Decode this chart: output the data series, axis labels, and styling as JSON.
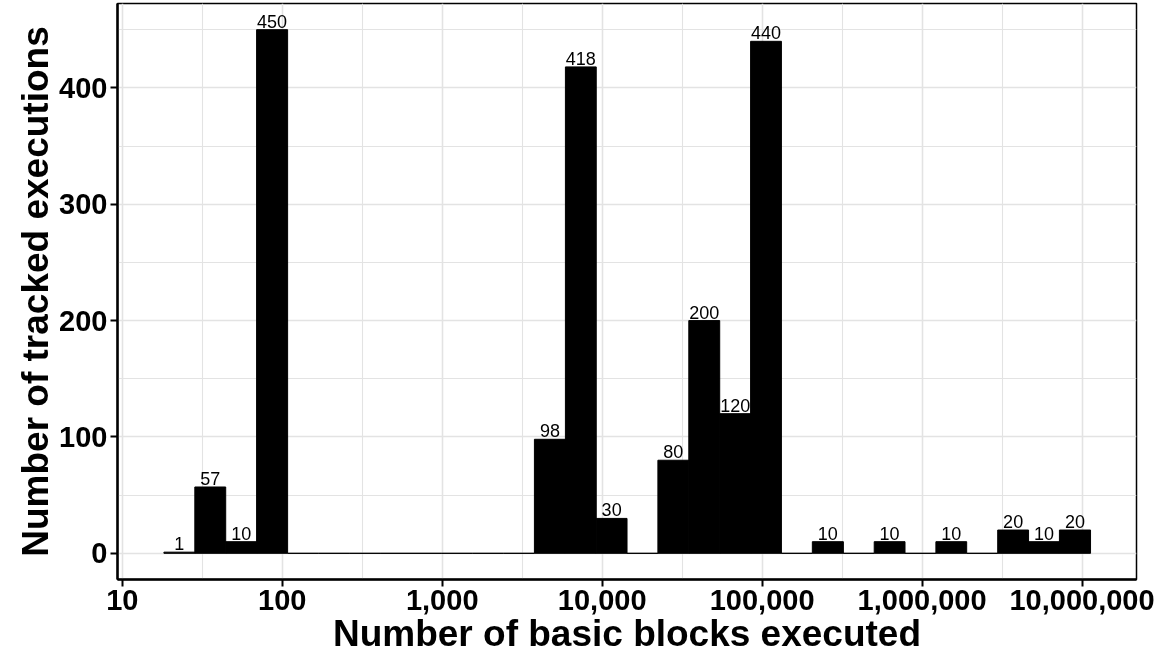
{
  "chart_data": {
    "type": "histogram",
    "xlabel": "Number of basic blocks executed",
    "ylabel": "Number of tracked executions",
    "bins": [
      18.2,
      28.4,
      44.3,
      69.1,
      108,
      168,
      262,
      409,
      638,
      994,
      1550,
      2420,
      3770,
      5890,
      9180,
      14300,
      22300,
      34800,
      54300,
      84700,
      132000,
      206000,
      322000,
      502000,
      782000,
      1220000,
      1900000,
      2970000,
      4630000,
      7220000,
      11300000
    ],
    "values": [
      1,
      57,
      10,
      450,
      0,
      0,
      0,
      0,
      0,
      0,
      0,
      0,
      98,
      418,
      30,
      0,
      80,
      200,
      120,
      440,
      0,
      10,
      0,
      10,
      0,
      10,
      0,
      20,
      10,
      20
    ],
    "value_labels": [
      "1",
      "57",
      "10",
      "450",
      null,
      null,
      null,
      null,
      null,
      null,
      null,
      null,
      "98",
      "418",
      "30",
      null,
      "80",
      "200",
      "120",
      "440",
      null,
      "10",
      null,
      "10",
      null,
      "10",
      null,
      "20",
      "10",
      "20"
    ],
    "color": "#000000",
    "log": "x",
    "xlim": [
      9.33,
      21900000
    ],
    "ylim": [
      -22.5,
      472.5
    ],
    "xticks": [
      10,
      {
        "value": 31.6,
        "label": null
      },
      100,
      {
        "value": 316,
        "label": null
      },
      {
        "value": 1000,
        "label": "1,000"
      },
      {
        "value": 3160,
        "label": null
      },
      {
        "value": 10000,
        "label": "10,000"
      },
      {
        "value": 31600,
        "label": null
      },
      {
        "value": 100000,
        "label": "100,000"
      },
      {
        "value": 316000,
        "label": null
      },
      {
        "value": 1000000,
        "label": "1,000,000"
      },
      {
        "value": 3160000,
        "label": null
      },
      {
        "value": 10000000,
        "label": "10,000,000"
      }
    ],
    "yticks": [
      0,
      {
        "value": 50,
        "label": null
      },
      100,
      {
        "value": 150,
        "label": null
      },
      200,
      {
        "value": 250,
        "label": null
      },
      300,
      {
        "value": 350,
        "label": null
      },
      400,
      {
        "value": 450,
        "label": null
      }
    ],
    "grid": true
  }
}
